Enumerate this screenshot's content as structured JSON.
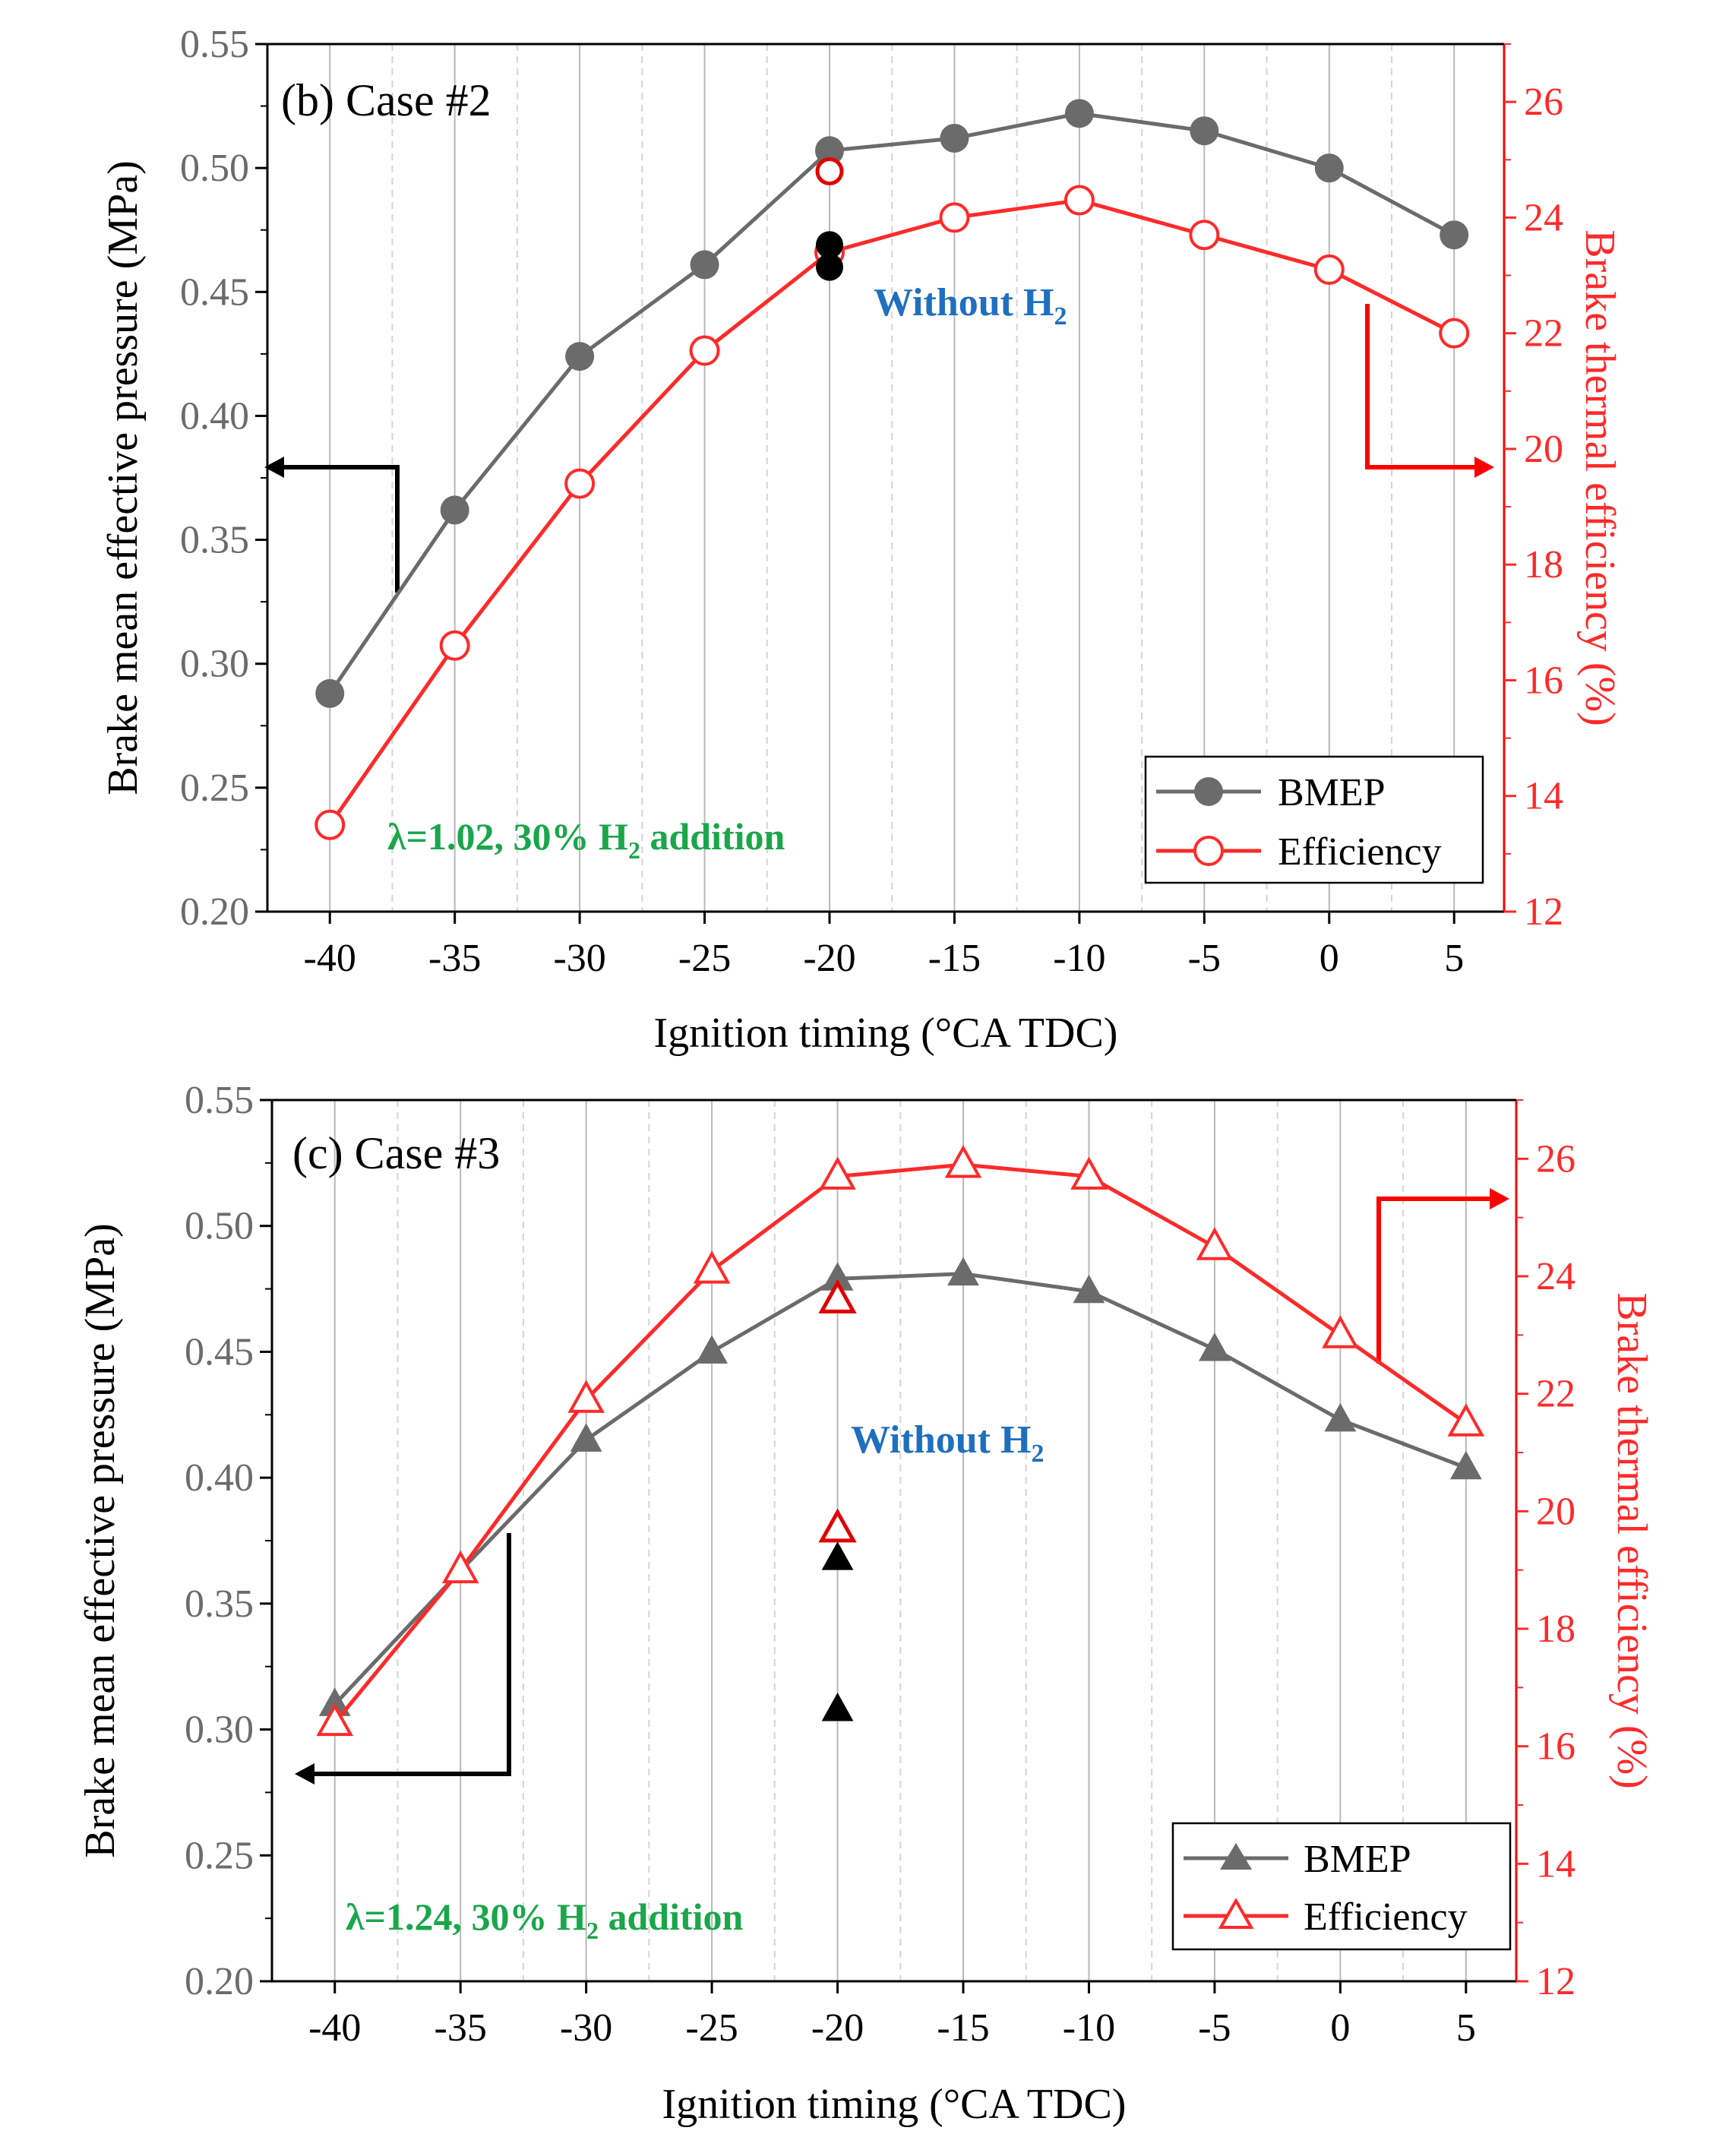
{
  "colors": {
    "bmep": "#6b6b6b",
    "efficiency": "#ff2a2a",
    "without_h2_text": "#1f6fc0",
    "condition_text": "#1aa64a",
    "arrow_black": "#000000",
    "arrow_red": "#ff0000",
    "solid_grid": "#b8b8b8",
    "dashed_grid": "#d4d4d4"
  },
  "chart_data": [
    {
      "type": "line",
      "title": "(b) Case #2",
      "xlabel": "Ignition timing (°CA TDC)",
      "ylabel": "Brake mean effective pressure (MPa)",
      "y2label": "Brake thermal efficiency (%)",
      "xlim": [
        -42.5,
        7.0
      ],
      "ylim": [
        0.2,
        0.55
      ],
      "y2lim": [
        12,
        27.0
      ],
      "xticks": [
        -40,
        -35,
        -30,
        -25,
        -20,
        -15,
        -10,
        -5,
        0,
        5
      ],
      "xtick_labels": [
        "-40",
        "-35",
        "-30",
        "-25",
        "-20",
        "-15",
        "-10",
        "-5",
        "0",
        "5"
      ],
      "yticks": [
        0.2,
        0.25,
        0.3,
        0.35,
        0.4,
        0.45,
        0.5,
        0.55
      ],
      "ytick_labels": [
        "0.20",
        "0.25",
        "0.30",
        "0.35",
        "0.40",
        "0.45",
        "0.50",
        "0.55"
      ],
      "y2ticks": [
        12,
        14,
        16,
        18,
        20,
        22,
        24,
        26
      ],
      "y2tick_labels": [
        "12",
        "14",
        "16",
        "18",
        "20",
        "22",
        "24",
        "26"
      ],
      "x": [
        -40,
        -35,
        -30,
        -25,
        -20,
        -15,
        -10,
        -5,
        0,
        5
      ],
      "series": [
        {
          "name": "BMEP",
          "axis": "left",
          "marker": "filled-circle",
          "values": [
            0.288,
            0.362,
            0.424,
            0.461,
            0.507,
            0.512,
            0.522,
            0.515,
            0.5,
            0.473
          ]
        },
        {
          "name": "Efficiency",
          "axis": "right",
          "marker": "open-circle",
          "values": [
            13.5,
            16.6,
            19.4,
            21.7,
            23.4,
            24.0,
            24.3,
            23.7,
            23.1,
            22.0
          ]
        }
      ],
      "without_h2_points": [
        {
          "x": -20,
          "y": 0.469,
          "axis": "left",
          "marker": "black-circle"
        },
        {
          "x": -20,
          "y": 0.46,
          "axis": "left",
          "marker": "black-circle"
        },
        {
          "x": -20,
          "y": 24.8,
          "axis": "right",
          "marker": "red-open-circle"
        }
      ],
      "annotations": {
        "without_h2": "Without H",
        "without_h2_sub": "2",
        "condition_pre": "λ=1.02, 30% H",
        "condition_sub": "2",
        "condition_post": " addition"
      },
      "legend": {
        "position": "bottom-right",
        "entries": [
          "BMEP",
          "Efficiency"
        ]
      },
      "grid": "vertical"
    },
    {
      "type": "line",
      "title": "(c) Case #3",
      "xlabel": "Ignition timing (°CA TDC)",
      "ylabel": "Brake mean effective pressure (MPa)",
      "y2label": "Brake thermal efficiency (%)",
      "xlim": [
        -42.5,
        7.0
      ],
      "ylim": [
        0.2,
        0.55
      ],
      "y2lim": [
        12,
        27.0
      ],
      "xticks": [
        -40,
        -35,
        -30,
        -25,
        -20,
        -15,
        -10,
        -5,
        0,
        5
      ],
      "xtick_labels": [
        "-40",
        "-35",
        "-30",
        "-25",
        "-20",
        "-15",
        "-10",
        "-5",
        "0",
        "5"
      ],
      "yticks": [
        0.2,
        0.25,
        0.3,
        0.35,
        0.4,
        0.45,
        0.5,
        0.55
      ],
      "ytick_labels": [
        "0.20",
        "0.25",
        "0.30",
        "0.35",
        "0.40",
        "0.45",
        "0.50",
        "0.55"
      ],
      "y2ticks": [
        12,
        14,
        16,
        18,
        20,
        22,
        24,
        26
      ],
      "y2tick_labels": [
        "12",
        "14",
        "16",
        "18",
        "20",
        "22",
        "24",
        "26"
      ],
      "x": [
        -40,
        -35,
        -30,
        -25,
        -20,
        -15,
        -10,
        -5,
        0,
        5
      ],
      "series": [
        {
          "name": "BMEP",
          "axis": "left",
          "marker": "filled-triangle",
          "values": [
            0.31,
            0.363,
            0.415,
            0.45,
            0.479,
            0.481,
            0.474,
            0.451,
            0.423,
            0.404
          ]
        },
        {
          "name": "Efficiency",
          "axis": "right",
          "marker": "open-triangle",
          "values": [
            16.4,
            19.0,
            21.9,
            24.1,
            25.7,
            25.9,
            25.7,
            24.5,
            23.0,
            21.5
          ]
        }
      ],
      "without_h2_points": [
        {
          "x": -20,
          "y": 0.368,
          "axis": "left",
          "marker": "black-triangle"
        },
        {
          "x": -20,
          "y": 0.308,
          "axis": "left",
          "marker": "black-triangle"
        },
        {
          "x": -20,
          "y": 23.6,
          "axis": "right",
          "marker": "red-open-triangle"
        },
        {
          "x": -20,
          "y": 19.7,
          "axis": "right",
          "marker": "red-open-triangle"
        }
      ],
      "annotations": {
        "without_h2": "Without H",
        "without_h2_sub": "2",
        "condition_pre": "λ=1.24, 30% H",
        "condition_sub": "2",
        "condition_post": " addition"
      },
      "legend": {
        "position": "bottom-right",
        "entries": [
          "BMEP",
          "Efficiency"
        ]
      },
      "grid": "vertical"
    }
  ]
}
